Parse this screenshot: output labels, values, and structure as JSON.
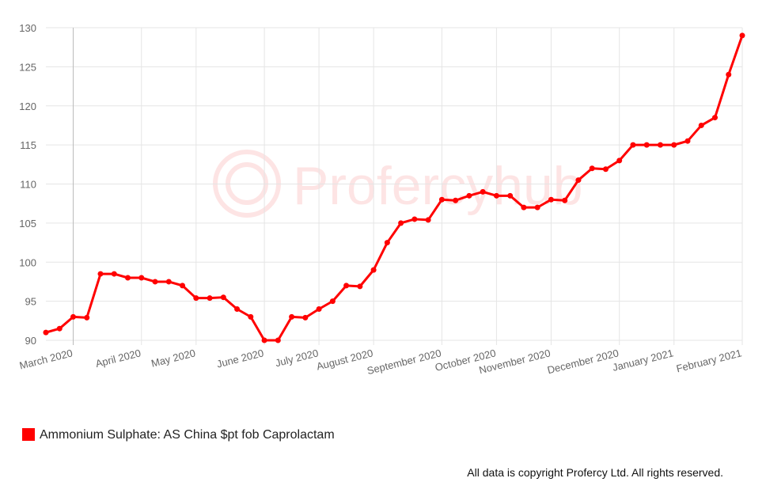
{
  "chart_data": {
    "type": "line",
    "watermark": "Profercyhub",
    "categories": [
      null,
      null,
      "March 2020",
      null,
      null,
      null,
      null,
      "April 2020",
      null,
      null,
      null,
      "May 2020",
      null,
      null,
      null,
      null,
      "June 2020",
      null,
      null,
      null,
      "July 2020",
      null,
      null,
      null,
      "August 2020",
      null,
      null,
      null,
      null,
      "September 2020",
      null,
      null,
      null,
      "October 2020",
      null,
      null,
      null,
      "November 2020",
      null,
      null,
      null,
      null,
      "December 2020",
      null,
      null,
      null,
      "January 2021",
      null,
      null,
      null,
      null,
      "February 2021"
    ],
    "series": [
      {
        "name": "Ammonium Sulphate: AS China $pt fob Caprolactam",
        "color": "#ff0000",
        "values": [
          91,
          91.5,
          93,
          92.9,
          98.5,
          98.5,
          98,
          98,
          97.5,
          97.5,
          97,
          95.4,
          95.4,
          95.5,
          94,
          93,
          90,
          90,
          93,
          92.9,
          94,
          95,
          97,
          96.9,
          99,
          102.5,
          105,
          105.5,
          105.4,
          108,
          107.9,
          108.5,
          109,
          108.5,
          108.5,
          107,
          107,
          108,
          107.9,
          110.5,
          112,
          111.9,
          113,
          115,
          115,
          115,
          115,
          115.5,
          117.5,
          118.5,
          124,
          129
        ]
      }
    ],
    "ylim": [
      90,
      130
    ],
    "yticks": [
      90,
      95,
      100,
      105,
      110,
      115,
      120,
      125,
      130
    ],
    "grid": true,
    "footer": "All data is copyright Profercy Ltd. All rights reserved."
  }
}
